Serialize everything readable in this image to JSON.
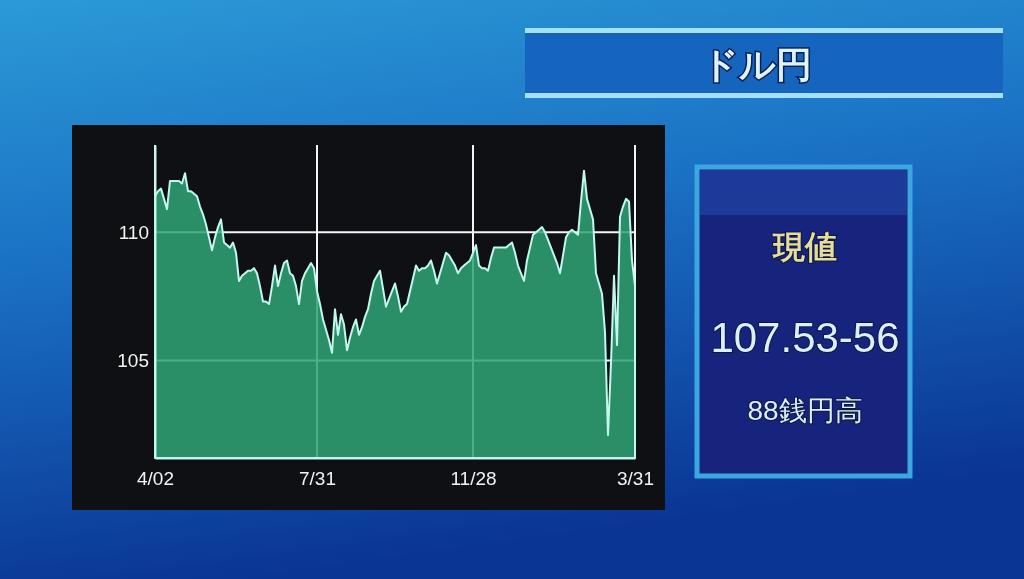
{
  "chart_data": [
    {
      "type": "area",
      "categories": [
        "4/02",
        null,
        null,
        null,
        null,
        null,
        null,
        null,
        null,
        null,
        null,
        null,
        null,
        null,
        null,
        null,
        null,
        null,
        null,
        null,
        null,
        null,
        null,
        null,
        null,
        null,
        null,
        null,
        null,
        null,
        null,
        null,
        null,
        null,
        null,
        null,
        null,
        null,
        null,
        null,
        null,
        null,
        null,
        null,
        null,
        null,
        null,
        null,
        null,
        null,
        null,
        null,
        null,
        null,
        "7/31",
        null,
        null,
        null,
        null,
        null,
        null,
        null,
        null,
        null,
        null,
        null,
        null,
        null,
        null,
        null,
        null,
        null,
        null,
        null,
        null,
        null,
        null,
        null,
        null,
        null,
        null,
        null,
        null,
        null,
        null,
        null,
        null,
        null,
        null,
        null,
        null,
        null,
        null,
        null,
        null,
        null,
        null,
        null,
        null,
        null,
        null,
        null,
        null,
        null,
        null,
        null,
        "11/28",
        null,
        null,
        null,
        null,
        null,
        null,
        null,
        null,
        null,
        null,
        null,
        null,
        null,
        null,
        null,
        null,
        null,
        null,
        null,
        null,
        null,
        null,
        null,
        null,
        null,
        null,
        null,
        null,
        null,
        null,
        null,
        null,
        null,
        null,
        null,
        null,
        null,
        null,
        null,
        null,
        null,
        null,
        null,
        null,
        null,
        null,
        null,
        null,
        null,
        null,
        null,
        null,
        null,
        "3/31"
      ],
      "values": [
        111.4,
        111.6,
        111.7,
        111.3,
        110.9,
        112.0,
        112.0,
        112.0,
        112.0,
        111.9,
        112.3,
        111.6,
        111.6,
        111.5,
        111.4,
        111.0,
        110.7,
        110.3,
        109.8,
        109.3,
        109.8,
        110.2,
        110.5,
        109.6,
        109.5,
        109.4,
        109.6,
        109.2,
        108.1,
        108.3,
        108.4,
        108.5,
        108.5,
        108.6,
        108.4,
        107.9,
        107.3,
        107.3,
        107.2,
        107.9,
        108.7,
        107.9,
        108.4,
        108.8,
        108.9,
        108.4,
        108.3,
        107.9,
        107.2,
        108.1,
        108.4,
        108.6,
        108.8,
        108.6,
        107.7,
        107.2,
        106.6,
        106.2,
        105.8,
        105.3,
        107.0,
        106.0,
        106.8,
        106.4,
        105.4,
        105.9,
        106.3,
        106.6,
        106.0,
        106.3,
        106.7,
        107.0,
        107.6,
        108.1,
        108.3,
        108.5,
        107.8,
        107.1,
        107.4,
        107.7,
        108.0,
        107.5,
        106.9,
        107.1,
        107.2,
        107.7,
        108.2,
        108.7,
        108.5,
        108.6,
        108.6,
        108.7,
        108.9,
        108.5,
        108.0,
        108.4,
        108.8,
        109.2,
        109.1,
        108.9,
        108.7,
        108.4,
        108.6,
        108.7,
        108.8,
        108.9,
        109.2,
        109.5,
        108.7,
        108.6,
        108.6,
        108.5,
        109.0,
        109.4,
        109.4,
        109.4,
        109.4,
        109.4,
        109.5,
        109.6,
        109.2,
        108.7,
        108.4,
        108.1,
        108.9,
        109.4,
        109.9,
        110.0,
        110.1,
        110.2,
        110.0,
        109.7,
        109.4,
        109.1,
        108.8,
        108.4,
        109.1,
        109.8,
        110.0,
        110.1,
        110.0,
        109.9,
        111.2,
        112.4,
        111.3,
        110.9,
        110.5,
        108.4,
        108.0,
        107.6,
        106.1,
        102.1,
        104.9,
        108.3,
        105.6,
        110.6,
        111.0,
        111.3,
        111.2,
        108.9,
        107.9
      ],
      "color": "#2fa474",
      "ylim": [
        101.2,
        113.4
      ],
      "yticks": [
        105,
        110
      ],
      "grid": true
    },
    {
      "type": "other",
      "title": "ドル円",
      "annotations": [
        "現値",
        "107.53-56",
        "88銭円高"
      ]
    }
  ]
}
